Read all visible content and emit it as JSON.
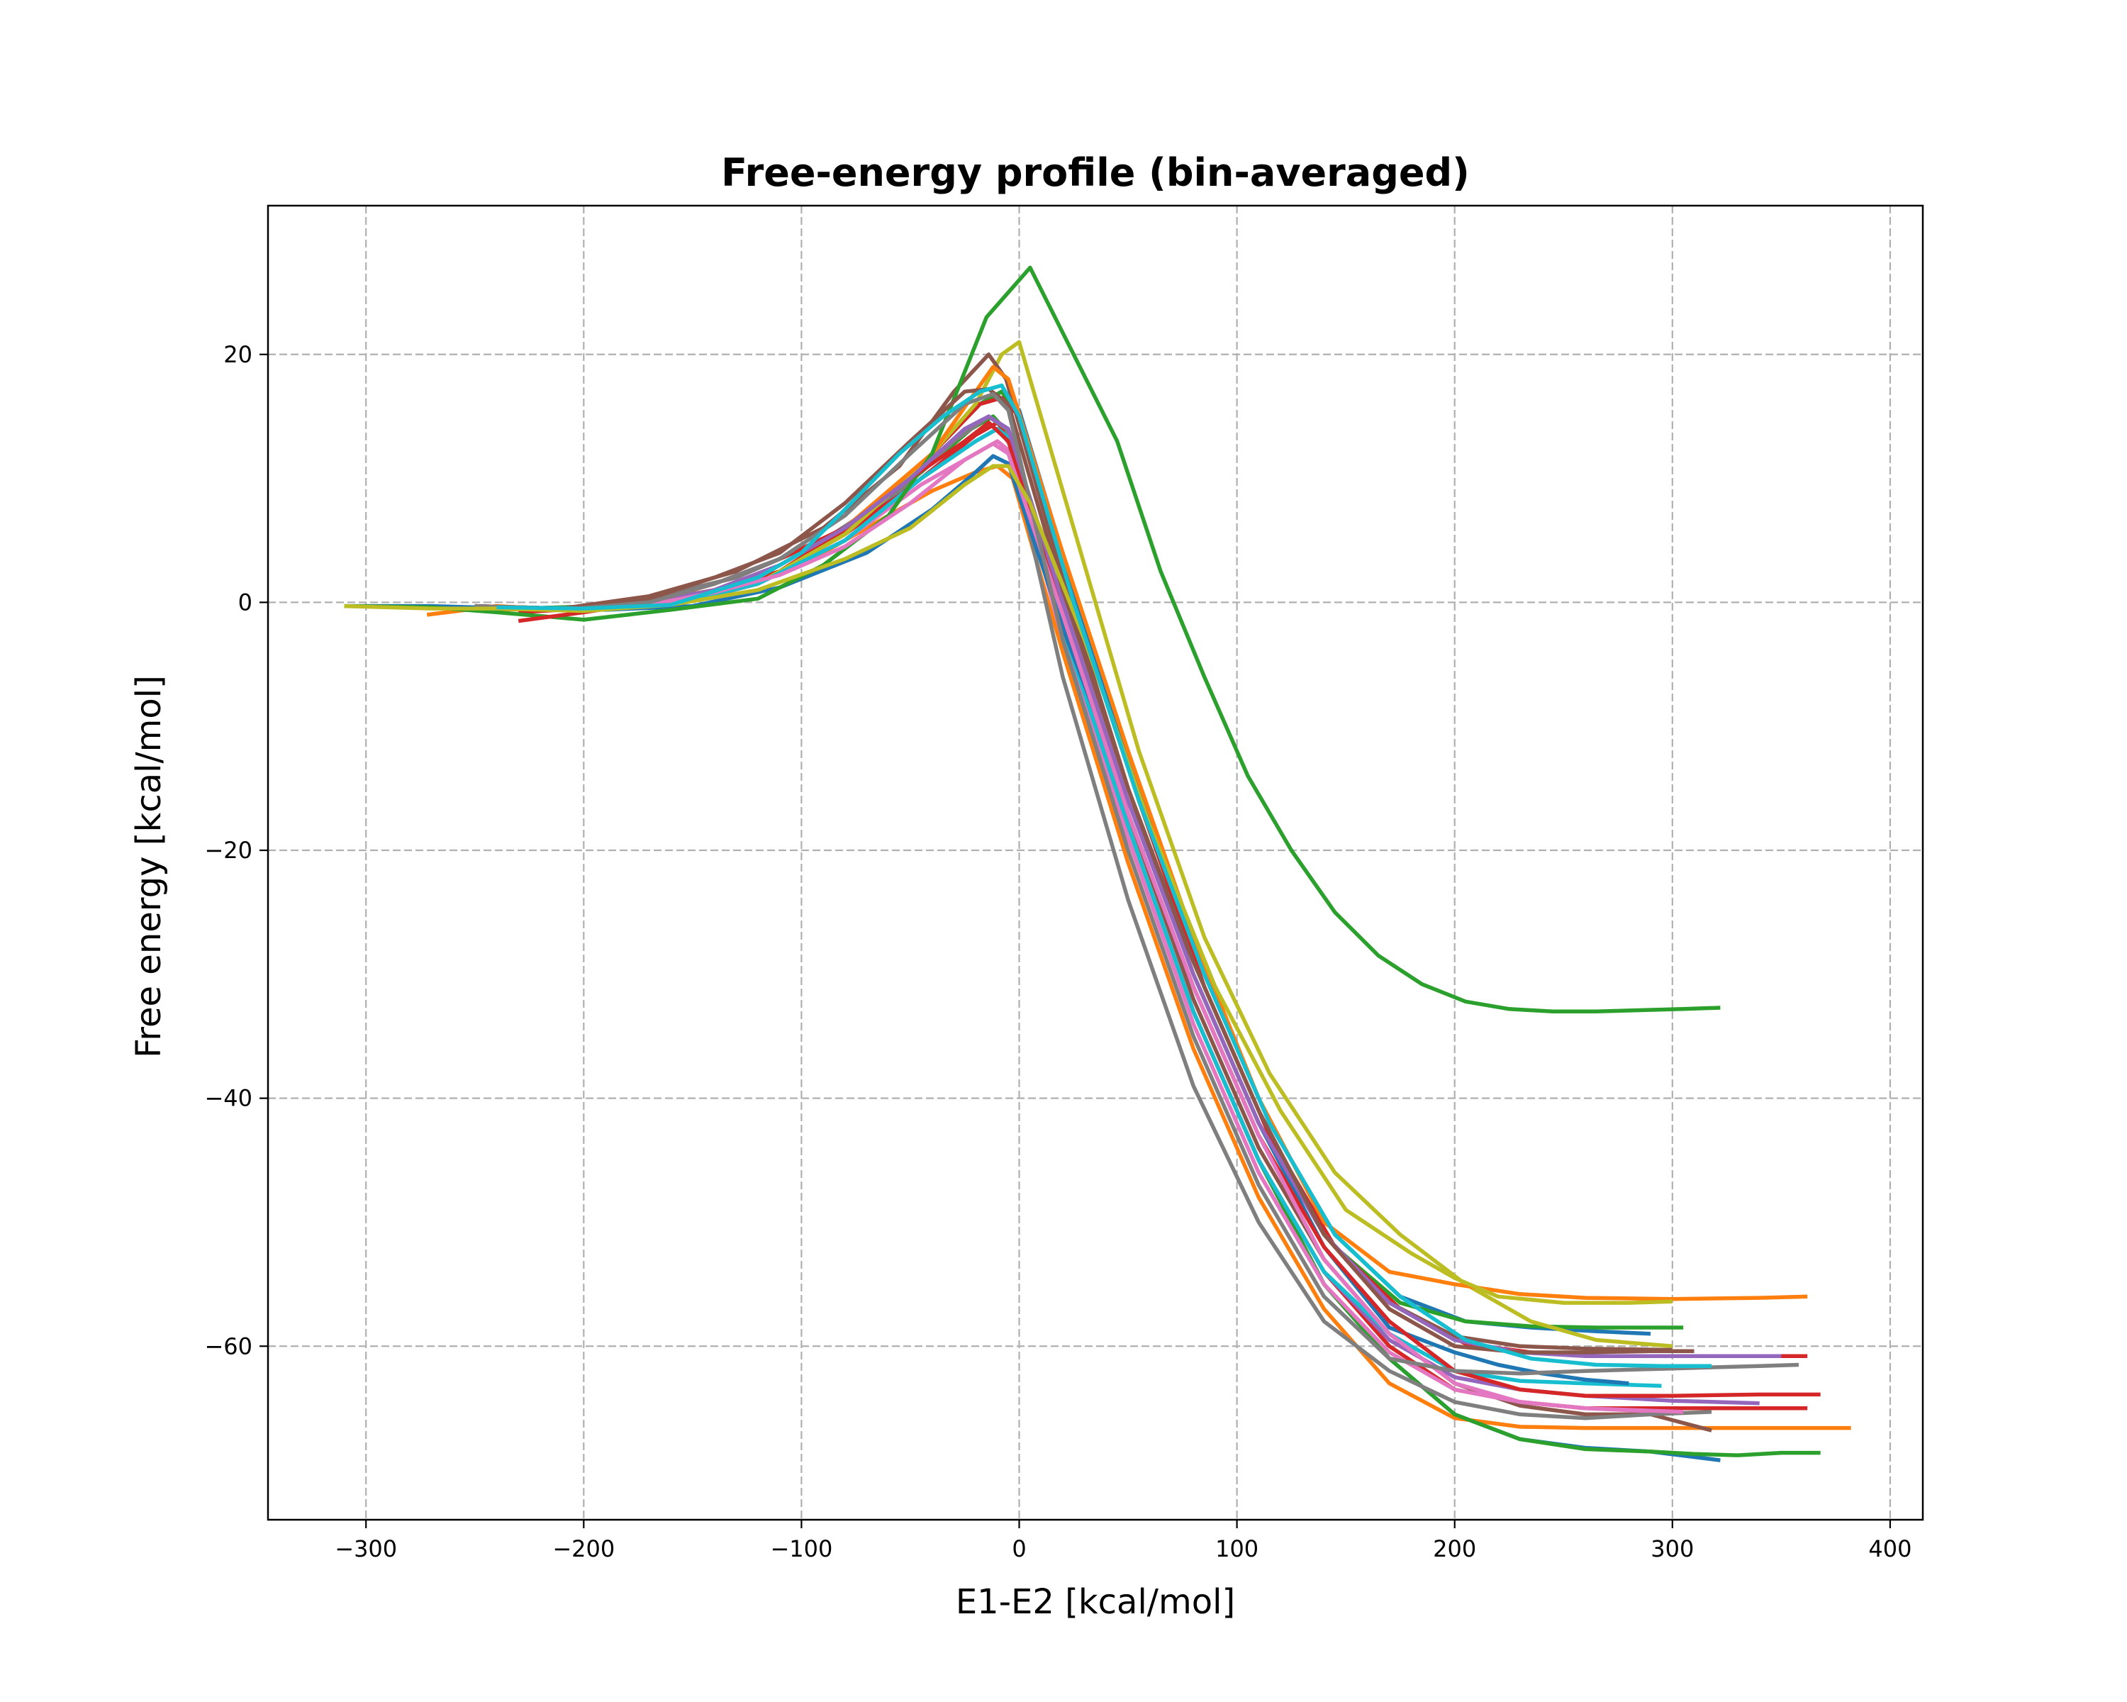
{
  "chart_data": {
    "type": "line",
    "title": "Free-energy profile (bin-averaged)",
    "xlabel": "E1-E2 [kcal/mol]",
    "ylabel": "Free energy [kcal/mol]",
    "xlim": [
      -345,
      415
    ],
    "ylim": [
      -74,
      32
    ],
    "xticks": [
      -300,
      -200,
      -100,
      0,
      100,
      200,
      300,
      400
    ],
    "yticks": [
      -60,
      -40,
      -20,
      0,
      20
    ],
    "xtick_labels": [
      "−300",
      "−200",
      "−100",
      "0",
      "100",
      "200",
      "300",
      "400"
    ],
    "ytick_labels": [
      "−60",
      "−40",
      "−20",
      "0",
      "20"
    ],
    "grid": true,
    "series": [
      {
        "color": "#1f77b4",
        "x": [
          -310,
          -270,
          -230,
          -190,
          -150,
          -110,
          -70,
          -40,
          -20,
          -12,
          -5,
          20,
          50,
          80,
          110,
          140,
          170,
          200,
          220,
          240,
          260,
          280
        ],
        "y": [
          -0.3,
          -0.3,
          -0.5,
          -0.6,
          -0.3,
          1.2,
          4,
          7.5,
          10.5,
          11.8,
          11.2,
          -2,
          -16,
          -30,
          -42,
          -52,
          -58.5,
          -60.5,
          -61.5,
          -62.2,
          -62.7,
          -63
        ]
      },
      {
        "color": "#ff7f0e",
        "x": [
          -272,
          -240,
          -200,
          -160,
          -120,
          -80,
          -40,
          -20,
          -12,
          -5,
          20,
          50,
          80,
          110,
          140,
          170,
          200,
          230,
          260,
          300,
          340,
          362
        ],
        "y": [
          -1,
          -0.3,
          -0.7,
          0,
          2,
          6,
          12,
          17,
          19,
          18,
          4,
          -12,
          -27,
          -40,
          -50,
          -54,
          -55,
          -55.8,
          -56.1,
          -56.2,
          -56.1,
          -56
        ],
        "x2": [
          -272,
          -240,
          -200,
          -160,
          -120,
          -80,
          -40,
          -20,
          -10,
          0,
          20,
          50,
          80,
          110,
          140,
          170,
          200,
          230,
          260,
          300,
          340,
          382
        ]
      },
      {
        "color": "#2ca02c",
        "x": [
          -310,
          -270,
          -240,
          -200,
          -160,
          -120,
          -90,
          -60,
          -40,
          -15,
          5,
          25,
          45,
          65,
          85,
          105,
          125,
          145,
          165,
          185,
          205,
          225,
          245,
          265,
          285,
          305,
          322
        ],
        "y": [
          -0.3,
          -0.4,
          -0.8,
          -1.4,
          -0.6,
          0.3,
          3,
          7,
          12,
          23,
          27,
          20,
          13,
          2.5,
          -6,
          -14,
          -20,
          -25,
          -28.5,
          -30.8,
          -32.2,
          -32.8,
          -33,
          -33,
          -32.9,
          -32.8,
          -32.7
        ]
      },
      {
        "color": "#d62728",
        "x": [
          -230,
          -200,
          -170,
          -140,
          -110,
          -80,
          -50,
          -25,
          -14,
          -5,
          20,
          50,
          80,
          110,
          140,
          170,
          200,
          230,
          260,
          300,
          340,
          368
        ],
        "y": [
          -1.5,
          -0.8,
          0,
          1.5,
          3.5,
          6,
          10,
          13,
          14.5,
          13,
          -1,
          -17,
          -31,
          -43,
          -52,
          -58,
          -62,
          -63.5,
          -64,
          -64,
          -63.9,
          -63.9
        ]
      },
      {
        "color": "#9467bd",
        "x": [
          -240,
          -200,
          -170,
          -140,
          -110,
          -80,
          -50,
          -25,
          -14,
          -5,
          20,
          50,
          80,
          110,
          140,
          170,
          200,
          230,
          260,
          300,
          330,
          350
        ],
        "y": [
          -0.5,
          -0.5,
          0,
          1,
          3,
          6,
          10,
          14,
          15,
          14,
          0,
          -16,
          -30,
          -42,
          -51,
          -56.5,
          -59.5,
          -60.5,
          -60.8,
          -60.8,
          -60.8,
          -60.8
        ]
      },
      {
        "color": "#8c564b",
        "x": [
          -250,
          -210,
          -170,
          -140,
          -110,
          -80,
          -50,
          -25,
          -14,
          -5,
          20,
          50,
          80,
          110,
          140,
          170,
          200,
          230,
          260,
          290,
          310
        ],
        "y": [
          -0.3,
          -0.5,
          0.3,
          2,
          4,
          8,
          13,
          17,
          17.2,
          16,
          1,
          -15,
          -29,
          -41,
          -51,
          -57,
          -60,
          -60.5,
          -60.5,
          -60.4,
          -60.4
        ]
      },
      {
        "color": "#e377c2",
        "x": [
          -240,
          -200,
          -170,
          -140,
          -110,
          -80,
          -50,
          -25,
          -12,
          -5,
          20,
          50,
          80,
          110,
          140,
          170,
          200,
          230,
          260,
          290,
          305
        ],
        "y": [
          -0.5,
          -0.5,
          -0.2,
          0.8,
          2.2,
          4.5,
          8,
          11.5,
          12.8,
          12,
          -1,
          -17,
          -31,
          -43,
          -53,
          -59,
          -63,
          -64.5,
          -65,
          -65.2,
          -65.3
        ]
      },
      {
        "color": "#7f7f7f",
        "x": [
          -250,
          -210,
          -170,
          -140,
          -110,
          -80,
          -50,
          -25,
          -12,
          -5,
          20,
          50,
          80,
          110,
          140,
          170,
          200,
          230,
          260,
          300,
          340,
          358
        ],
        "y": [
          -0.3,
          -0.6,
          0,
          1.5,
          3.5,
          7,
          12,
          16,
          16.8,
          15.5,
          -3,
          -20,
          -35,
          -47,
          -56,
          -61,
          -62,
          -62.2,
          -62,
          -61.8,
          -61.6,
          -61.5
        ]
      },
      {
        "color": "#bcbd22",
        "x": [
          -310,
          -270,
          -240,
          -200,
          -160,
          -120,
          -80,
          -50,
          -25,
          -12,
          -5,
          5,
          30,
          60,
          90,
          120,
          150,
          180,
          200,
          220,
          250,
          280,
          300
        ],
        "y": [
          -0.3,
          -0.5,
          -0.5,
          -0.7,
          -0.2,
          1,
          3.5,
          6,
          9.5,
          11,
          11,
          8,
          -3,
          -18,
          -31,
          -41,
          -49,
          -52.5,
          -54.5,
          -56,
          -56.5,
          -56.5,
          -56.4
        ]
      },
      {
        "color": "#17becf",
        "x": [
          -240,
          -200,
          -160,
          -120,
          -100,
          -80,
          -55,
          -35,
          -18,
          -8,
          0,
          25,
          55,
          85,
          115,
          145,
          175,
          205,
          235,
          265,
          295,
          318
        ],
        "y": [
          -0.4,
          -0.5,
          -0.2,
          2,
          4,
          7.5,
          12,
          15,
          17,
          17.5,
          15,
          0,
          -16,
          -30,
          -42,
          -51,
          -56,
          -59.5,
          -61,
          -61.5,
          -61.6,
          -61.6
        ]
      }
    ],
    "extra_series": [
      {
        "color": "#1f77b4",
        "x": [
          -240,
          -200,
          -160,
          -120,
          -80,
          -45,
          -20,
          -10,
          -3,
          20,
          50,
          80,
          110,
          140,
          170,
          200,
          230,
          260,
          290,
          322
        ],
        "y": [
          -0.4,
          -0.5,
          -0.3,
          1.5,
          5,
          10,
          13.5,
          14.5,
          13,
          -2,
          -18,
          -33,
          -45,
          -55,
          -61,
          -65.5,
          -67.5,
          -68.2,
          -68.5,
          -69.2
        ]
      },
      {
        "color": "#1f77b4",
        "x": [
          -230,
          -190,
          -150,
          -110,
          -70,
          -40,
          -18,
          -8,
          0,
          25,
          55,
          85,
          115,
          145,
          175,
          205,
          235,
          265,
          290
        ],
        "y": [
          -0.5,
          -0.3,
          0.2,
          2.5,
          7,
          12,
          16,
          17,
          15.5,
          1,
          -15,
          -30,
          -42,
          -51,
          -56,
          -58,
          -58.5,
          -58.8,
          -59
        ]
      },
      {
        "color": "#ff7f0e",
        "x": [
          -260,
          -220,
          -180,
          -140,
          -100,
          -70,
          -40,
          -20,
          -10,
          -3,
          20,
          50,
          80,
          110,
          140,
          170,
          200,
          230,
          260,
          300,
          340,
          382
        ],
        "y": [
          -0.5,
          -0.6,
          -0.2,
          1,
          3,
          6,
          9,
          10.5,
          11,
          10,
          -4,
          -21,
          -36,
          -48,
          -57,
          -63,
          -65.8,
          -66.5,
          -66.6,
          -66.6,
          -66.6,
          -66.6
        ]
      },
      {
        "color": "#2ca02c",
        "x": [
          -240,
          -200,
          -160,
          -120,
          -80,
          -45,
          -22,
          -12,
          -4,
          20,
          50,
          80,
          110,
          140,
          170,
          200,
          230,
          260,
          290,
          310,
          330,
          350,
          368
        ],
        "y": [
          -0.4,
          -0.5,
          -0.2,
          1.5,
          5.5,
          10.5,
          14,
          15,
          13.5,
          -2,
          -18,
          -33,
          -45,
          -55,
          -61,
          -65.5,
          -67.5,
          -68.3,
          -68.5,
          -68.7,
          -68.8,
          -68.6,
          -68.6
        ]
      },
      {
        "color": "#2ca02c",
        "x": [
          -230,
          -190,
          -150,
          -110,
          -70,
          -40,
          -18,
          -8,
          0,
          25,
          55,
          85,
          115,
          145,
          175,
          205,
          235,
          265,
          305
        ],
        "y": [
          -0.5,
          -0.3,
          0.2,
          2.5,
          7,
          12,
          16,
          17,
          15,
          0,
          -16,
          -31,
          -43,
          -52,
          -56.5,
          -58,
          -58.4,
          -58.5,
          -58.5
        ]
      },
      {
        "color": "#d62728",
        "x": [
          -230,
          -190,
          -150,
          -110,
          -70,
          -40,
          -18,
          -8,
          0,
          25,
          55,
          85,
          115,
          145,
          175,
          205,
          235,
          265,
          300,
          340,
          362
        ],
        "y": [
          -0.8,
          -0.4,
          0.2,
          2.5,
          7,
          12,
          16,
          16.5,
          15,
          0,
          -16,
          -31,
          -43,
          -52,
          -57,
          -59.8,
          -60.5,
          -60.8,
          -60.8,
          -60.8,
          -60.8
        ]
      },
      {
        "color": "#d62728",
        "x": [
          -240,
          -200,
          -160,
          -120,
          -80,
          -45,
          -20,
          -10,
          -3,
          20,
          50,
          80,
          110,
          140,
          170,
          200,
          230,
          260,
          300,
          340,
          362
        ],
        "y": [
          -0.4,
          -0.5,
          -0.2,
          1.5,
          5.5,
          10,
          13.5,
          14.5,
          13,
          -2,
          -18,
          -33,
          -45,
          -54,
          -60,
          -63.5,
          -64.5,
          -65,
          -65,
          -65,
          -65
        ]
      },
      {
        "color": "#9467bd",
        "x": [
          -240,
          -200,
          -160,
          -120,
          -80,
          -45,
          -20,
          -10,
          -3,
          20,
          50,
          80,
          110,
          140,
          170,
          200,
          230,
          260,
          300,
          340
        ],
        "y": [
          -0.4,
          -0.5,
          -0.2,
          1.5,
          5,
          10,
          13,
          14,
          12.5,
          -2,
          -18,
          -33,
          -45,
          -54,
          -59.5,
          -62.5,
          -63.5,
          -64,
          -64.4,
          -64.6
        ]
      },
      {
        "color": "#8c564b",
        "x": [
          -250,
          -210,
          -170,
          -130,
          -90,
          -55,
          -30,
          -14,
          -6,
          20,
          50,
          80,
          110,
          140,
          170,
          200,
          230,
          260,
          290,
          318
        ],
        "y": [
          -0.3,
          -0.5,
          0.3,
          2,
          5,
          9,
          13,
          15,
          14,
          -1,
          -17,
          -32,
          -44,
          -53,
          -59,
          -63,
          -64.8,
          -65.5,
          -65.5,
          -66.8
        ]
      },
      {
        "color": "#e377c2",
        "x": [
          -240,
          -200,
          -160,
          -120,
          -80,
          -45,
          -20,
          -10,
          -3,
          20,
          50,
          80,
          110,
          140,
          170,
          200,
          230,
          260,
          295
        ],
        "y": [
          -0.4,
          -0.5,
          -0.2,
          1.5,
          5,
          9.5,
          12,
          13,
          12,
          -3,
          -19,
          -34,
          -46,
          -55,
          -60.5,
          -63.5,
          -64.5,
          -65,
          -65.3
        ]
      },
      {
        "color": "#7f7f7f",
        "x": [
          -250,
          -210,
          -170,
          -130,
          -90,
          -55,
          -30,
          -14,
          -6,
          20,
          50,
          80,
          110,
          140,
          170,
          200,
          230,
          260,
          290,
          318
        ],
        "y": [
          -0.3,
          -0.5,
          0.3,
          2,
          5,
          9,
          13,
          15,
          14,
          -6,
          -24,
          -39,
          -50,
          -58,
          -62,
          -64.5,
          -65.5,
          -65.8,
          -65.5,
          -65.3
        ]
      },
      {
        "color": "#bcbd22",
        "x": [
          -240,
          -200,
          -160,
          -120,
          -80,
          -45,
          -20,
          -8,
          0,
          25,
          55,
          85,
          115,
          145,
          175,
          205,
          235,
          265,
          300
        ],
        "y": [
          -0.4,
          -0.5,
          -0.2,
          1.5,
          5.5,
          11,
          16,
          20,
          21,
          6,
          -12,
          -27,
          -38,
          -46,
          -51,
          -55,
          -58,
          -59.5,
          -60
        ]
      },
      {
        "color": "#17becf",
        "x": [
          -240,
          -200,
          -160,
          -120,
          -80,
          -45,
          -20,
          -10,
          -3,
          20,
          50,
          80,
          110,
          140,
          170,
          200,
          230,
          260,
          295
        ],
        "y": [
          -0.4,
          -0.5,
          -0.2,
          1.5,
          5,
          10,
          13,
          14,
          13,
          -2,
          -18,
          -33,
          -45,
          -54,
          -59,
          -62,
          -62.8,
          -63,
          -63.2
        ]
      },
      {
        "color": "#8c564b",
        "x": [
          -250,
          -210,
          -170,
          -130,
          -90,
          -55,
          -30,
          -14,
          -6,
          20,
          50,
          80,
          110,
          140,
          170,
          200,
          230,
          260,
          300
        ],
        "y": [
          -0.3,
          -0.5,
          0.5,
          2.5,
          6,
          11,
          17,
          20,
          18,
          2,
          -15,
          -30,
          -42,
          -51,
          -56.5,
          -59.2,
          -60,
          -60.2,
          -60.3
        ]
      }
    ]
  }
}
